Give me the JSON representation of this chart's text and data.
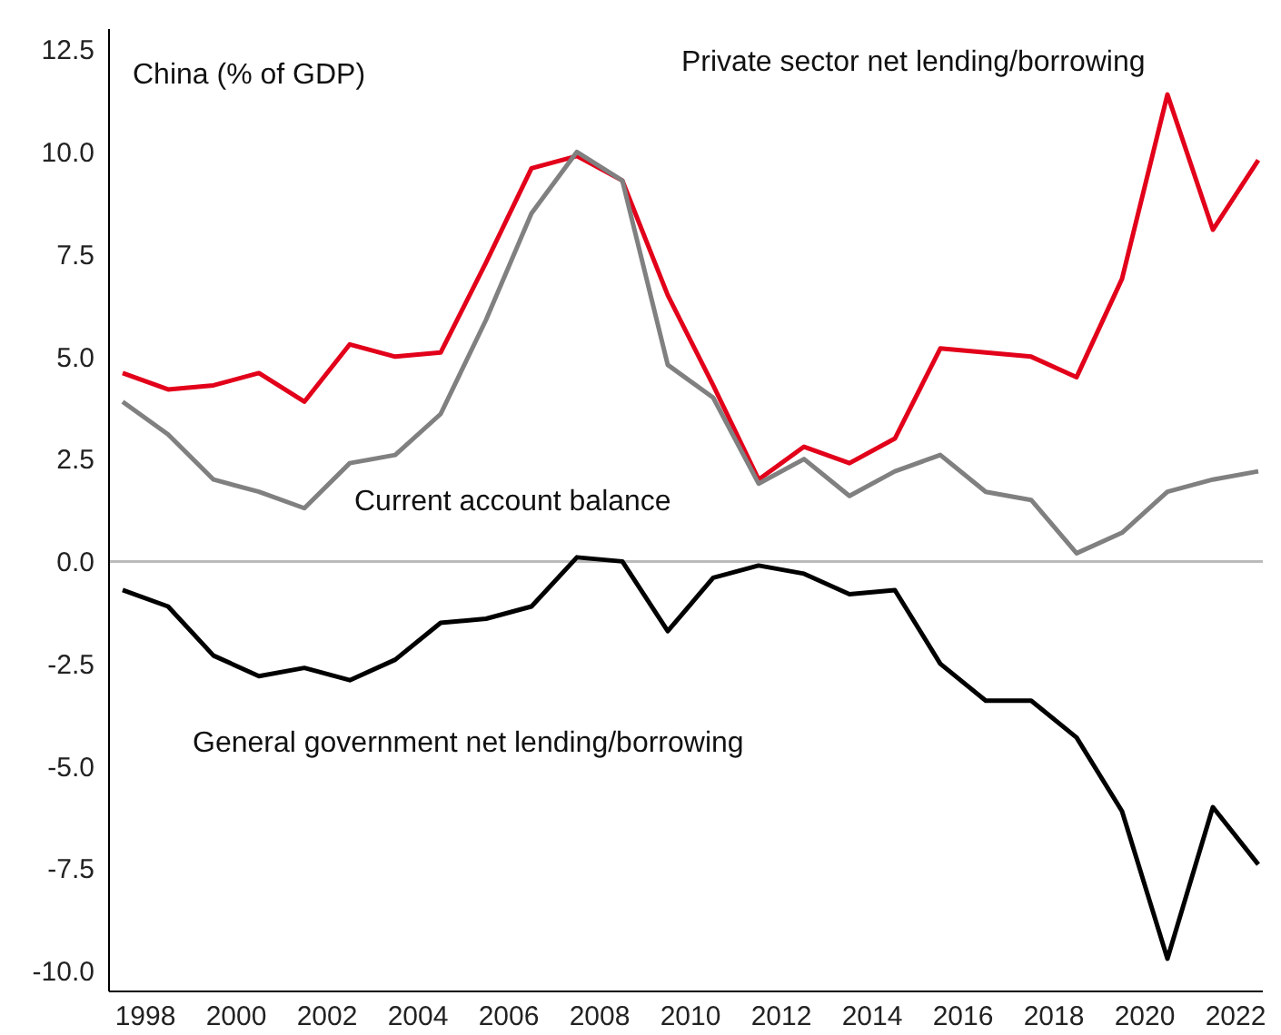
{
  "chart_data": {
    "type": "line",
    "title": "China (% of GDP)",
    "x": [
      1997.5,
      1998.5,
      1999.5,
      2000.5,
      2001.5,
      2002.5,
      2003.5,
      2004.5,
      2005.5,
      2006.5,
      2007.5,
      2008.5,
      2009.5,
      2010.5,
      2011.5,
      2012.5,
      2013.5,
      2014.5,
      2015.5,
      2016.5,
      2017.5,
      2018.5,
      2019.5,
      2020.5,
      2021.5,
      2022.5
    ],
    "series": [
      {
        "name": "Private sector net lending/borrowing",
        "color": "#e2001a",
        "values": [
          4.6,
          4.2,
          4.3,
          4.6,
          3.9,
          5.3,
          5.0,
          5.1,
          7.3,
          9.6,
          9.9,
          9.3,
          6.5,
          4.3,
          2.0,
          2.8,
          2.4,
          3.0,
          5.2,
          5.1,
          5.0,
          4.5,
          6.9,
          11.4,
          8.1,
          9.8
        ]
      },
      {
        "name": "Current account balance",
        "color": "#808080",
        "values": [
          3.9,
          3.1,
          2.0,
          1.7,
          1.3,
          2.4,
          2.6,
          3.6,
          5.9,
          8.5,
          10.0,
          9.3,
          4.8,
          4.0,
          1.9,
          2.5,
          1.6,
          2.2,
          2.6,
          1.7,
          1.5,
          0.2,
          0.7,
          1.7,
          2.0,
          2.2
        ]
      },
      {
        "name": "General government net lending/borrowing",
        "color": "#000000",
        "values": [
          -0.7,
          -1.1,
          -2.3,
          -2.8,
          -2.6,
          -2.9,
          -2.4,
          -1.5,
          -1.4,
          -1.1,
          0.1,
          0.0,
          -1.7,
          -0.4,
          -0.1,
          -0.3,
          -0.8,
          -0.7,
          -2.5,
          -3.4,
          -3.4,
          -4.3,
          -6.1,
          -9.7,
          -6.0,
          -7.4
        ]
      }
    ],
    "xlim": [
      1997.2,
      2022.6
    ],
    "xticks": [
      1998,
      2000,
      2002,
      2004,
      2006,
      2008,
      2010,
      2012,
      2014,
      2016,
      2018,
      2020,
      2022
    ],
    "ylim": [
      -10.5,
      13
    ],
    "yticks": [
      {
        "value": -10,
        "label": "-10.0"
      },
      {
        "value": -7.5,
        "label": "-7.5"
      },
      {
        "value": -5,
        "label": "-5.0"
      },
      {
        "value": -2.5,
        "label": "-2.5"
      },
      {
        "value": 0,
        "label": "0.0"
      },
      {
        "value": 2.5,
        "label": "2.5"
      },
      {
        "value": 5,
        "label": "5.0"
      },
      {
        "value": 7.5,
        "label": "7.5"
      },
      {
        "value": 10,
        "label": "10.0"
      },
      {
        "value": 12.5,
        "label": "12.5"
      }
    ],
    "ref_lines": [
      {
        "axis": "y",
        "value": 0,
        "color": "#bbbbbb"
      }
    ],
    "grid": false,
    "marker": "none",
    "line_style": "solid"
  }
}
